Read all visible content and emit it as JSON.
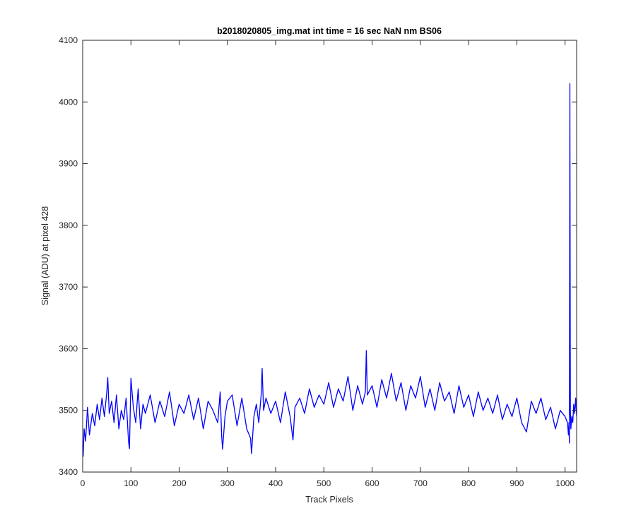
{
  "chart_data": {
    "type": "line",
    "title": "b2018020805_img.mat int time = 16 sec  NaN nm BS06",
    "xlabel": "Track Pixels",
    "ylabel": "Signal (ADU) at pixel 428",
    "xlim": [
      0,
      1024
    ],
    "ylim": [
      3400,
      4100
    ],
    "xticks": [
      0,
      100,
      200,
      300,
      400,
      500,
      600,
      700,
      800,
      900,
      1000
    ],
    "yticks": [
      3400,
      3500,
      3600,
      3700,
      3800,
      3900,
      4000,
      4100
    ],
    "grid": false,
    "line_color": "#0000ff",
    "series": [
      {
        "x": [
          1,
          3,
          6,
          10,
          14,
          20,
          25,
          30,
          35,
          40,
          45,
          50,
          52,
          55,
          60,
          65,
          70,
          75,
          80,
          85,
          90,
          95,
          97,
          100,
          105,
          110,
          115,
          120,
          125,
          130,
          140,
          150,
          160,
          170,
          180,
          190,
          200,
          210,
          220,
          230,
          240,
          250,
          260,
          270,
          280,
          285,
          288,
          290,
          295,
          300,
          310,
          320,
          330,
          340,
          348,
          350,
          355,
          360,
          365,
          370,
          372,
          375,
          380,
          390,
          400,
          410,
          420,
          430,
          436,
          440,
          450,
          460,
          470,
          480,
          490,
          500,
          510,
          520,
          530,
          540,
          550,
          560,
          570,
          580,
          586,
          588,
          590,
          600,
          610,
          620,
          630,
          640,
          650,
          660,
          670,
          680,
          690,
          700,
          710,
          720,
          730,
          740,
          750,
          760,
          770,
          780,
          790,
          800,
          810,
          820,
          830,
          840,
          850,
          860,
          870,
          880,
          890,
          900,
          910,
          920,
          930,
          940,
          950,
          960,
          970,
          980,
          990,
          1000,
          1005,
          1007,
          1008,
          1009,
          1010,
          1011,
          1012,
          1014,
          1016,
          1018,
          1020,
          1022,
          1024
        ],
        "y": [
          3425,
          3470,
          3450,
          3505,
          3460,
          3495,
          3475,
          3510,
          3485,
          3520,
          3490,
          3530,
          3553,
          3495,
          3515,
          3480,
          3525,
          3470,
          3500,
          3485,
          3520,
          3450,
          3438,
          3552,
          3505,
          3480,
          3535,
          3470,
          3510,
          3495,
          3525,
          3480,
          3515,
          3490,
          3530,
          3475,
          3510,
          3495,
          3525,
          3485,
          3520,
          3470,
          3515,
          3500,
          3480,
          3530,
          3460,
          3437,
          3490,
          3515,
          3525,
          3475,
          3520,
          3470,
          3455,
          3430,
          3490,
          3510,
          3480,
          3525,
          3568,
          3500,
          3520,
          3495,
          3515,
          3480,
          3530,
          3490,
          3452,
          3505,
          3520,
          3495,
          3535,
          3505,
          3525,
          3510,
          3545,
          3505,
          3535,
          3515,
          3555,
          3500,
          3540,
          3510,
          3530,
          3597,
          3525,
          3540,
          3505,
          3550,
          3520,
          3560,
          3515,
          3545,
          3500,
          3540,
          3520,
          3555,
          3505,
          3535,
          3500,
          3545,
          3515,
          3530,
          3495,
          3540,
          3505,
          3525,
          3490,
          3530,
          3500,
          3520,
          3495,
          3525,
          3485,
          3510,
          3490,
          3520,
          3480,
          3465,
          3515,
          3495,
          3520,
          3485,
          3505,
          3470,
          3500,
          3490,
          3480,
          3460,
          3480,
          3447,
          4030,
          3500,
          3470,
          3490,
          3480,
          3510,
          3495,
          3520,
          3490
        ]
      }
    ]
  }
}
